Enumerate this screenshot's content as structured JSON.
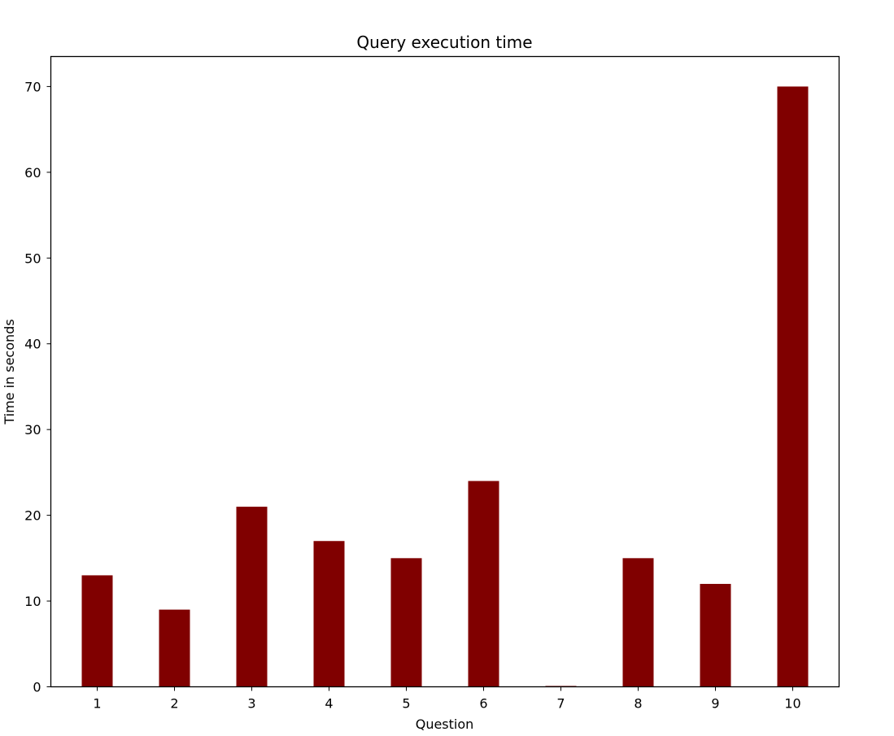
{
  "chart_data": {
    "type": "bar",
    "title": "Query execution time",
    "xlabel": "Question",
    "ylabel": "Time in seconds",
    "categories": [
      "1",
      "2",
      "3",
      "4",
      "5",
      "6",
      "7",
      "8",
      "9",
      "10"
    ],
    "values": [
      13,
      9,
      21,
      17,
      15,
      24,
      0.1,
      15,
      12,
      70
    ],
    "ylim": [
      0,
      73.5
    ],
    "yticks": [
      0,
      10,
      20,
      30,
      40,
      50,
      60,
      70
    ],
    "grid": false,
    "bar_color": "#800000"
  }
}
